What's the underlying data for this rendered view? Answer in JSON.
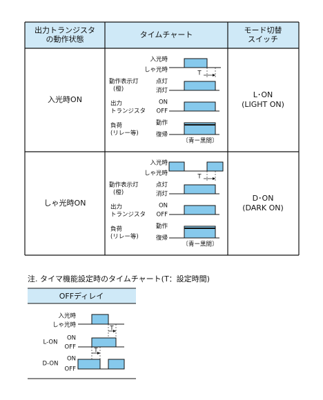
{
  "table": {
    "headers": [
      [
        "出力トランジスタ",
        "の動作状態"
      ],
      [
        "タイムチャート"
      ],
      [
        "モード切替",
        "スイッチ"
      ]
    ],
    "rows": [
      {
        "state": "入光時ON",
        "chart": {
          "light_on": "入光時",
          "light_off": "しゃ光時",
          "t": "T",
          "indicator": [
            "動作表示灯",
            "(橙)"
          ],
          "lit": "点灯",
          "unlit": "消灯",
          "output": [
            "出力",
            "トランジスタ"
          ],
          "on": "ON",
          "off": "OFF",
          "load": [
            "負荷",
            "(リレー等)"
          ],
          "operate": "動作",
          "release": "復帰",
          "wiring": "〔青ー黒間〕"
        },
        "mode": [
          "L･ON",
          "(LIGHT ON)"
        ]
      },
      {
        "state": "しゃ光時ON",
        "chart": {
          "light_on": "入光時",
          "light_off": "しゃ光時",
          "t": "T",
          "indicator": [
            "動作表示灯",
            "(橙)"
          ],
          "lit": "点灯",
          "unlit": "消灯",
          "output": [
            "出力",
            "トランジスタ"
          ],
          "on": "ON",
          "off": "OFF",
          "load": [
            "負荷",
            "(リレー等)"
          ],
          "operate": "動作",
          "release": "復帰",
          "wiring": "〔青ー黒間〕"
        },
        "mode": [
          "D･ON",
          "(DARK ON)"
        ]
      }
    ]
  },
  "note": {
    "title": "注. タイマ機能設定時のタイムチャート(T：設定時間)",
    "header": "OFFディレイ",
    "chart": {
      "light_on": "入光時",
      "light_off": "しゃ光時",
      "t_upper": "T",
      "l_on": "L-ON",
      "l_on_on": "ON",
      "l_on_off": "OFF",
      "t_lower": "T",
      "d_on": "D-ON",
      "d_on_on": "ON",
      "d_on_off": "OFF"
    }
  }
}
